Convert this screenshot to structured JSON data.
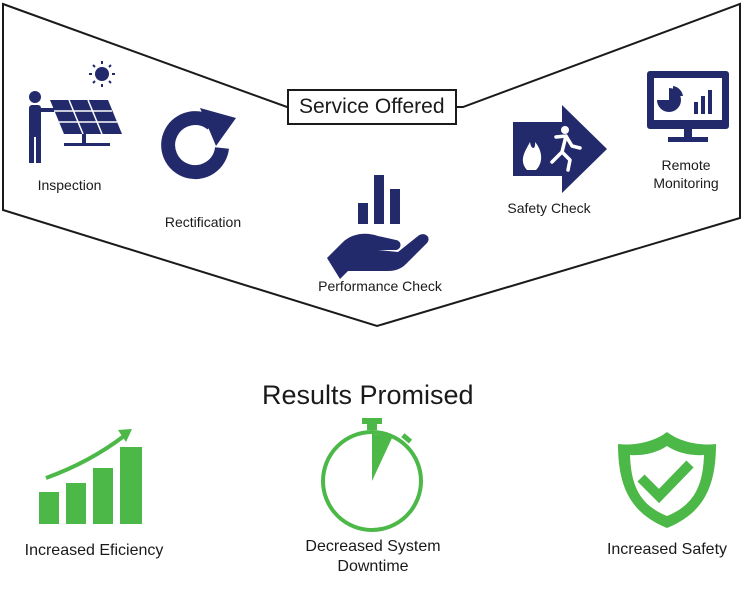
{
  "services": {
    "title": "Service Offered",
    "items": [
      {
        "label": "Inspection",
        "icon": "solar-panel-inspector-icon"
      },
      {
        "label": "Rectification",
        "icon": "refresh-arrow-icon"
      },
      {
        "label": "Performance Check",
        "icon": "hand-bar-chart-icon"
      },
      {
        "label": "Safety Check",
        "icon": "fire-exit-arrow-icon"
      },
      {
        "label": "Remote Monitoring",
        "icon": "monitor-dashboard-icon"
      }
    ]
  },
  "results": {
    "title": "Results Promised",
    "items": [
      {
        "label": "Increased Eficiency",
        "icon": "growth-bar-chart-icon"
      },
      {
        "label": "Decreased System Downtime",
        "icon": "stopwatch-icon"
      },
      {
        "label": "Increased Safety",
        "icon": "shield-check-icon"
      }
    ]
  },
  "colors": {
    "navy": "#232a6b",
    "green": "#4cb848",
    "outline": "#1a1a1a"
  }
}
